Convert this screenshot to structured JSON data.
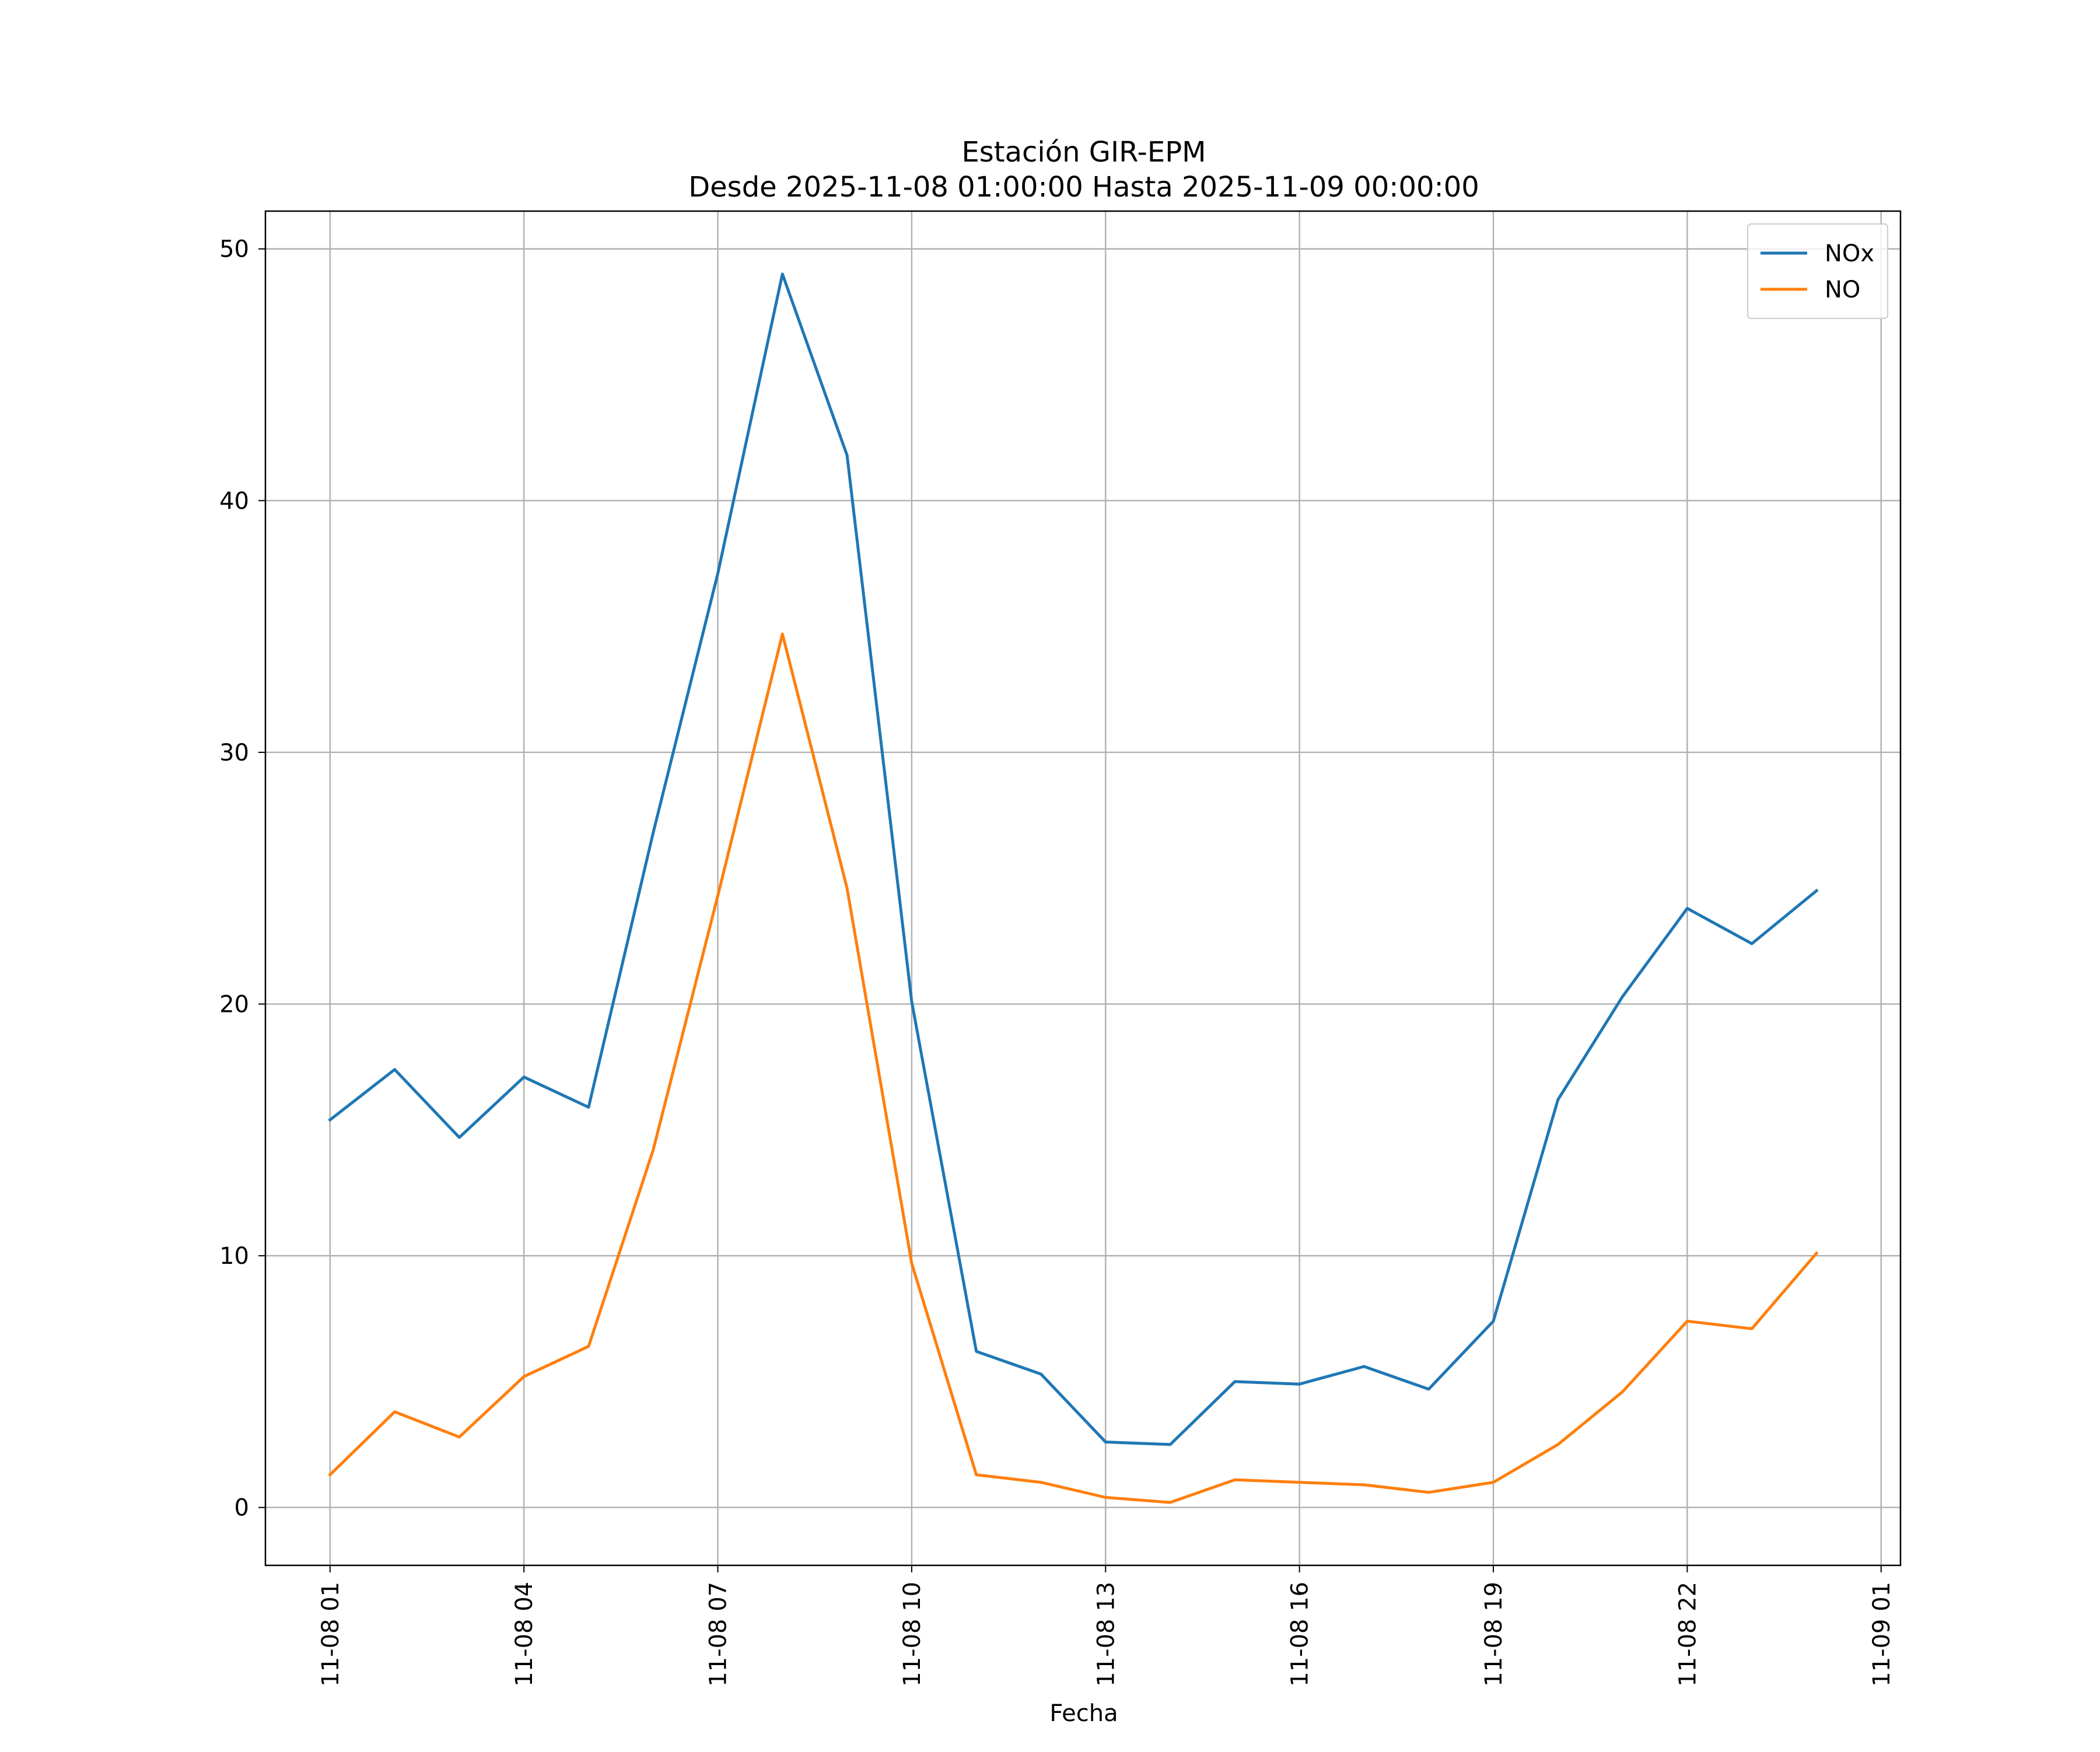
{
  "chart_data": {
    "type": "line",
    "title": "Estación GIR-EPM",
    "subtitle": "Desde 2025-11-08 01:00:00 Hasta 2025-11-09 00:00:00",
    "xlabel": "Fecha",
    "ylabel": "",
    "x": [
      "2025-11-08 01:00",
      "2025-11-08 02:00",
      "2025-11-08 03:00",
      "2025-11-08 04:00",
      "2025-11-08 05:00",
      "2025-11-08 06:00",
      "2025-11-08 07:00",
      "2025-11-08 08:00",
      "2025-11-08 09:00",
      "2025-11-08 10:00",
      "2025-11-08 11:00",
      "2025-11-08 12:00",
      "2025-11-08 13:00",
      "2025-11-08 14:00",
      "2025-11-08 15:00",
      "2025-11-08 16:00",
      "2025-11-08 17:00",
      "2025-11-08 18:00",
      "2025-11-08 19:00",
      "2025-11-08 20:00",
      "2025-11-08 21:00",
      "2025-11-08 22:00",
      "2025-11-08 23:00",
      "2025-11-09 00:00"
    ],
    "series": [
      {
        "name": "NOx",
        "color": "#1f77b4",
        "values": [
          15.4,
          17.4,
          14.7,
          17.1,
          15.9,
          26.8,
          37.1,
          49.0,
          41.8,
          20.1,
          6.2,
          5.3,
          2.6,
          2.5,
          5.0,
          4.9,
          5.6,
          4.7,
          7.4,
          16.2,
          20.3,
          23.8,
          22.4,
          24.5
        ]
      },
      {
        "name": "NO",
        "color": "#ff7f0e",
        "values": [
          1.3,
          3.8,
          2.8,
          5.2,
          6.4,
          14.2,
          24.3,
          34.7,
          24.6,
          9.7,
          1.3,
          1.0,
          0.4,
          0.2,
          1.1,
          1.0,
          0.9,
          0.6,
          1.0,
          2.5,
          4.6,
          7.4,
          7.1,
          10.1
        ]
      }
    ],
    "x_range": [
      "2025-11-08 00:00",
      "2025-11-09 01:18"
    ],
    "ylim": [
      -2.3,
      51.5
    ],
    "xticks": [
      {
        "value": "2025-11-08 01:00",
        "label": "11-08 01"
      },
      {
        "value": "2025-11-08 04:00",
        "label": "11-08 04"
      },
      {
        "value": "2025-11-08 07:00",
        "label": "11-08 07"
      },
      {
        "value": "2025-11-08 10:00",
        "label": "11-08 10"
      },
      {
        "value": "2025-11-08 13:00",
        "label": "11-08 13"
      },
      {
        "value": "2025-11-08 16:00",
        "label": "11-08 16"
      },
      {
        "value": "2025-11-08 19:00",
        "label": "11-08 19"
      },
      {
        "value": "2025-11-08 22:00",
        "label": "11-08 22"
      },
      {
        "value": "2025-11-09 01:00",
        "label": "11-09 01"
      }
    ],
    "yticks": [
      0,
      10,
      20,
      30,
      40,
      50
    ],
    "grid": true,
    "legend": "top-right",
    "colors": {
      "grid": "#b0b0b0",
      "axes": "#000000"
    }
  }
}
